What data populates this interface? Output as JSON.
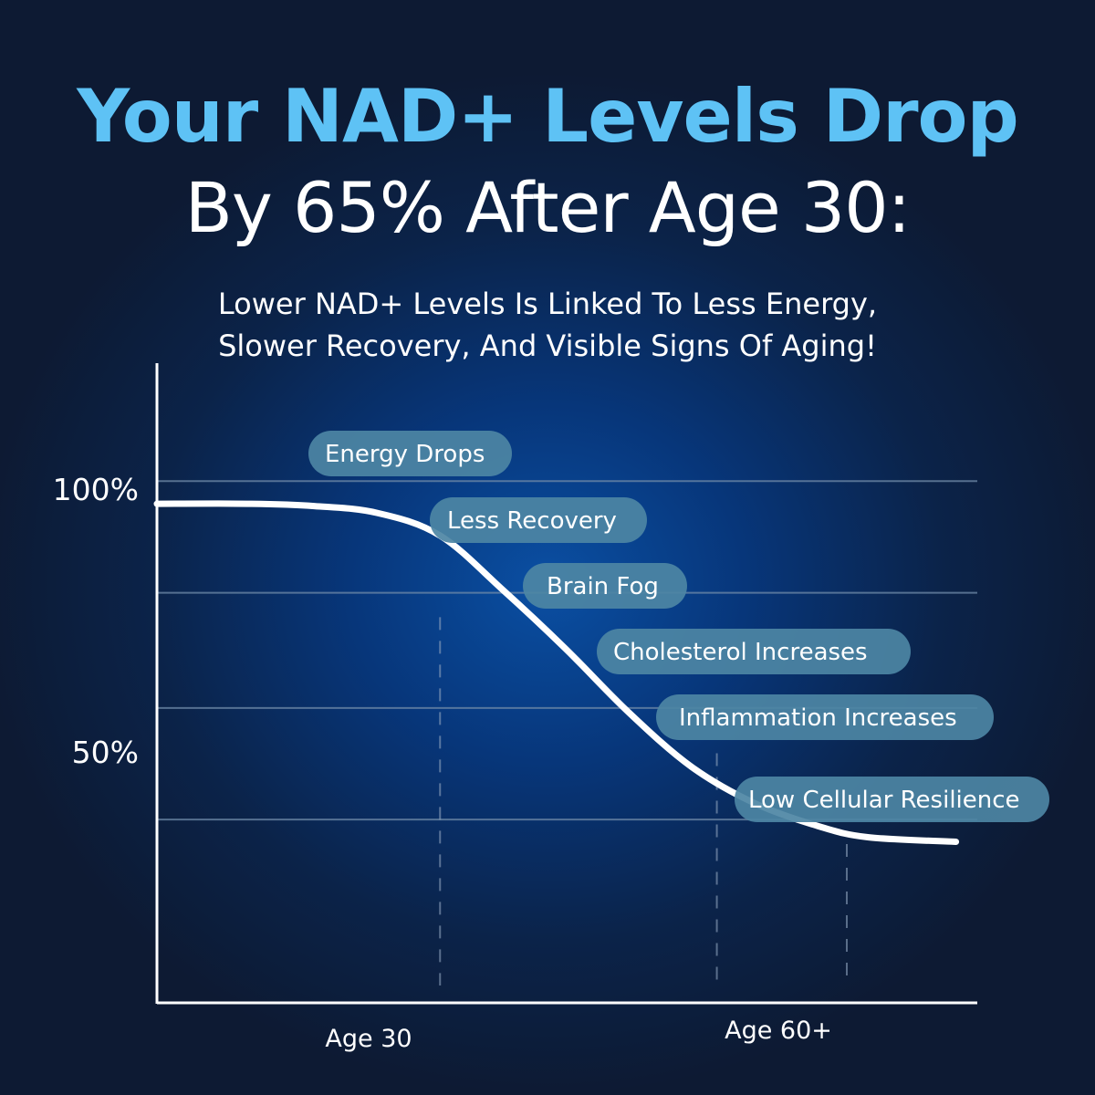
{
  "headline": {
    "line1": "Your NAD+ Levels Drop",
    "line2": "By 65% After Age 30:"
  },
  "subheadline": {
    "line1": "Lower NAD+ Levels Is Linked To Less Energy,",
    "line2": "Slower Recovery, And Visible Signs Of Aging!"
  },
  "colors": {
    "headline_accent": "#5ec2f5",
    "text": "#ffffff",
    "pill": "#4d86a4",
    "gridline": "#6f8aa8",
    "curve": "#ffffff"
  },
  "chart_data": {
    "type": "line",
    "title": "",
    "xlabel": "",
    "ylabel": "",
    "y_tick_labels": [
      {
        "value": 100,
        "label": "100%"
      },
      {
        "value": 50,
        "label": "50%"
      }
    ],
    "x_tick_labels": [
      {
        "value": 30,
        "label": "Age 30"
      },
      {
        "value": 60,
        "label": "Age 60+"
      }
    ],
    "ylim": [
      -15,
      126
    ],
    "xlim": [
      7.5,
      72.7
    ],
    "gridlines_y": [
      100,
      75.4,
      50,
      25.4
    ],
    "dashed_guides_x": [
      30,
      52,
      80
    ],
    "series": [
      {
        "values": [
          {
            "x": 7.5,
            "y": 95
          },
          {
            "x": 15,
            "y": 95
          },
          {
            "x": 20,
            "y": 94.5
          },
          {
            "x": 25,
            "y": 93
          },
          {
            "x": 30,
            "y": 88
          },
          {
            "x": 35,
            "y": 76
          },
          {
            "x": 40,
            "y": 63
          },
          {
            "x": 45,
            "y": 49
          },
          {
            "x": 50,
            "y": 37
          },
          {
            "x": 55,
            "y": 29
          },
          {
            "x": 60,
            "y": 24
          },
          {
            "x": 64,
            "y": 21.5
          },
          {
            "x": 71,
            "y": 20.5
          }
        ]
      }
    ],
    "annotations": [
      "Energy Drops",
      "Less Recovery",
      "Brain Fog",
      "Cholesterol Increases",
      "Inflammation Increases",
      "Low Cellular Resilience"
    ]
  }
}
